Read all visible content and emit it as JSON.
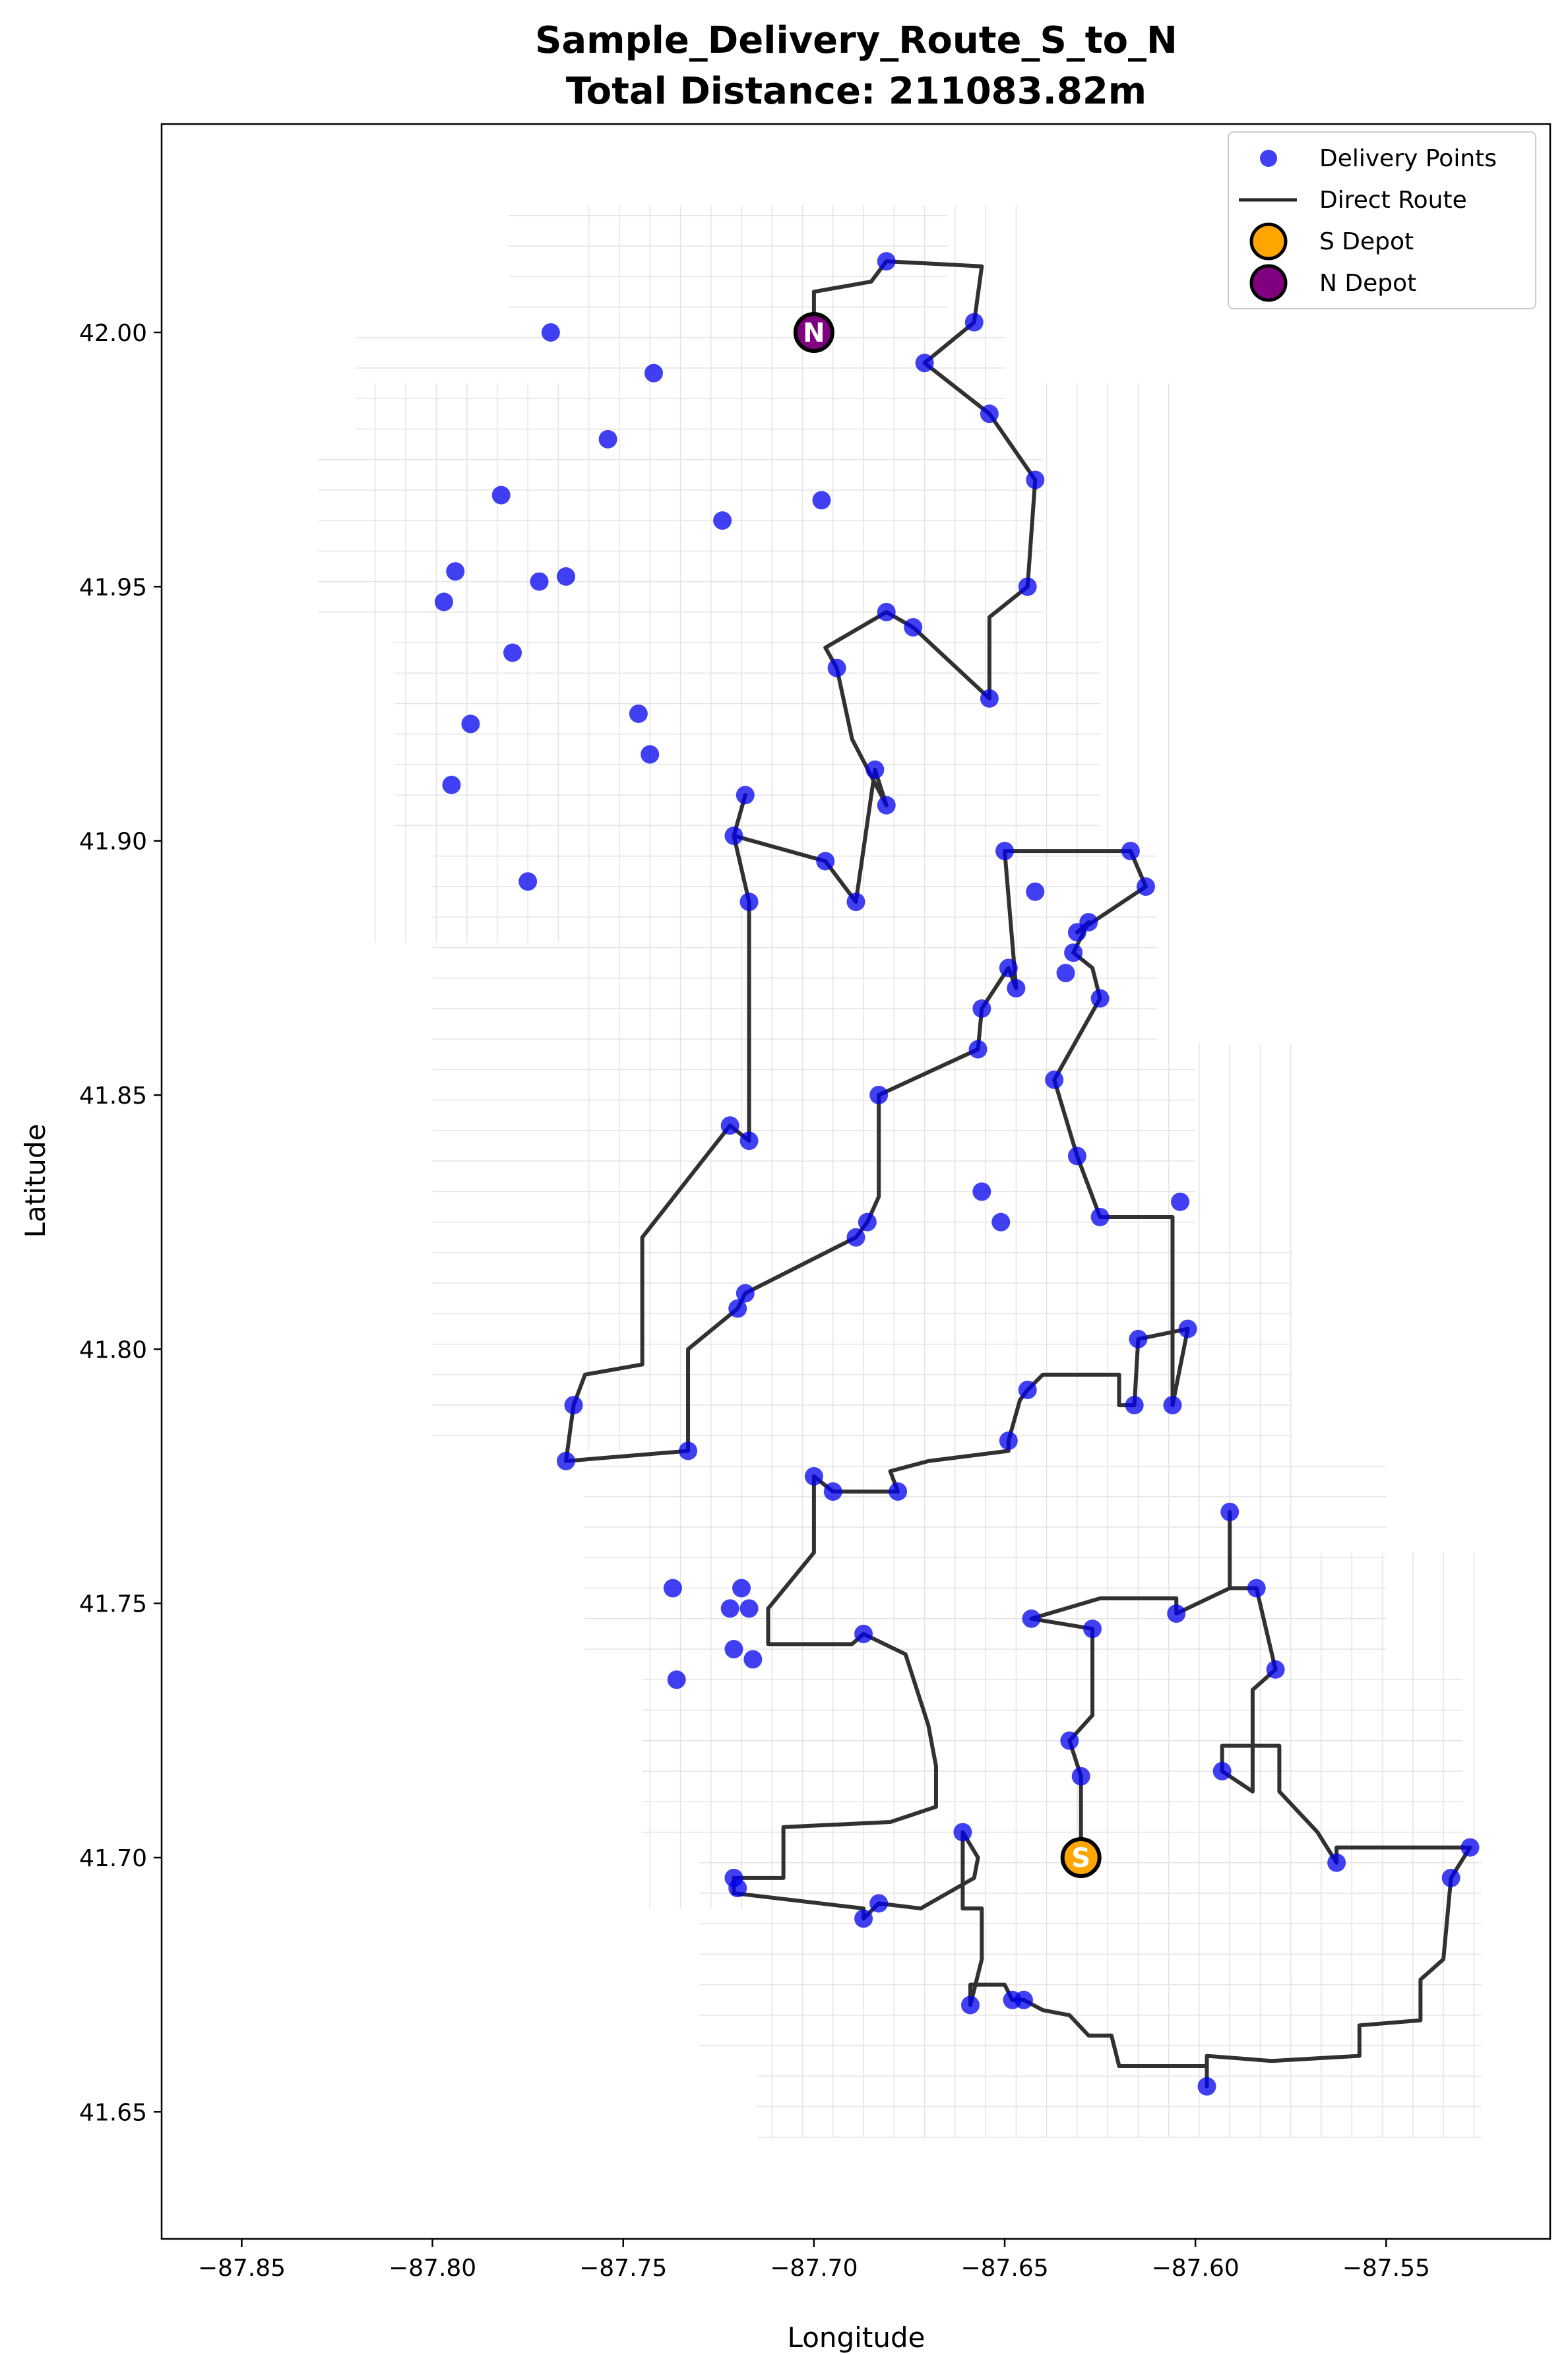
{
  "title": {
    "line1": "Sample_Delivery_Route_S_to_N",
    "line2": "Total Distance: 211083.82m"
  },
  "chart_data": {
    "type": "scatter",
    "xlabel": "Longitude",
    "ylabel": "Latitude",
    "xlim": [
      -87.871,
      -87.507
    ],
    "ylim": [
      41.625,
      42.041
    ],
    "x_ticks": [
      -87.85,
      -87.8,
      -87.75,
      -87.7,
      -87.65,
      -87.6,
      -87.55
    ],
    "y_ticks": [
      41.65,
      41.7,
      41.75,
      41.8,
      41.85,
      41.9,
      41.95,
      42.0
    ],
    "x_tick_labels": [
      "−87.85",
      "−87.80",
      "−87.75",
      "−87.70",
      "−87.65",
      "−87.60",
      "−87.55"
    ],
    "y_tick_labels": [
      "41.65",
      "41.70",
      "41.75",
      "41.80",
      "41.85",
      "41.90",
      "41.95",
      "42.00"
    ],
    "grid": false,
    "legend_position": "top-right",
    "colors": {
      "delivery_points": "#0000ee",
      "route": "#262626",
      "s_depot": "#ffa500",
      "n_depot": "#800080",
      "street_network": "#e4e4e4"
    },
    "legend": [
      {
        "label": "Delivery Points",
        "marker": "dot"
      },
      {
        "label": "Direct Route",
        "marker": "line"
      },
      {
        "label": "S Depot",
        "marker": "s-depot"
      },
      {
        "label": "N Depot",
        "marker": "n-depot"
      }
    ],
    "depots": {
      "s": {
        "label": "S",
        "lon": -87.63,
        "lat": 41.7
      },
      "n": {
        "label": "N",
        "lon": -87.7,
        "lat": 42.0
      }
    },
    "delivery_points": [
      [
        -87.681,
        42.014
      ],
      [
        -87.658,
        42.002
      ],
      [
        -87.671,
        41.994
      ],
      [
        -87.654,
        41.984
      ],
      [
        -87.642,
        41.971
      ],
      [
        -87.644,
        41.95
      ],
      [
        -87.681,
        41.945
      ],
      [
        -87.674,
        41.942
      ],
      [
        -87.654,
        41.928
      ],
      [
        -87.694,
        41.934
      ],
      [
        -87.684,
        41.914
      ],
      [
        -87.681,
        41.907
      ],
      [
        -87.718,
        41.909
      ],
      [
        -87.721,
        41.901
      ],
      [
        -87.697,
        41.896
      ],
      [
        -87.689,
        41.888
      ],
      [
        -87.717,
        41.888
      ],
      [
        -87.65,
        41.898
      ],
      [
        -87.617,
        41.898
      ],
      [
        -87.642,
        41.89
      ],
      [
        -87.613,
        41.891
      ],
      [
        -87.628,
        41.884
      ],
      [
        -87.631,
        41.882
      ],
      [
        -87.632,
        41.878
      ],
      [
        -87.634,
        41.874
      ],
      [
        -87.649,
        41.875
      ],
      [
        -87.647,
        41.871
      ],
      [
        -87.625,
        41.869
      ],
      [
        -87.656,
        41.867
      ],
      [
        -87.657,
        41.859
      ],
      [
        -87.683,
        41.85
      ],
      [
        -87.637,
        41.853
      ],
      [
        -87.722,
        41.844
      ],
      [
        -87.717,
        41.841
      ],
      [
        -87.631,
        41.838
      ],
      [
        -87.604,
        41.829
      ],
      [
        -87.625,
        41.826
      ],
      [
        -87.686,
        41.825
      ],
      [
        -87.689,
        41.822
      ],
      [
        -87.656,
        41.831
      ],
      [
        -87.651,
        41.825
      ],
      [
        -87.718,
        41.811
      ],
      [
        -87.72,
        41.808
      ],
      [
        -87.615,
        41.802
      ],
      [
        -87.602,
        41.804
      ],
      [
        -87.763,
        41.789
      ],
      [
        -87.765,
        41.778
      ],
      [
        -87.733,
        41.78
      ],
      [
        -87.644,
        41.792
      ],
      [
        -87.616,
        41.789
      ],
      [
        -87.606,
        41.789
      ],
      [
        -87.649,
        41.782
      ],
      [
        -87.7,
        41.775
      ],
      [
        -87.695,
        41.772
      ],
      [
        -87.678,
        41.772
      ],
      [
        -87.737,
        41.753
      ],
      [
        -87.719,
        41.753
      ],
      [
        -87.722,
        41.749
      ],
      [
        -87.717,
        41.749
      ],
      [
        -87.721,
        41.741
      ],
      [
        -87.716,
        41.739
      ],
      [
        -87.736,
        41.735
      ],
      [
        -87.687,
        41.744
      ],
      [
        -87.643,
        41.747
      ],
      [
        -87.627,
        41.745
      ],
      [
        -87.605,
        41.748
      ],
      [
        -87.591,
        41.768
      ],
      [
        -87.584,
        41.753
      ],
      [
        -87.579,
        41.737
      ],
      [
        -87.633,
        41.723
      ],
      [
        -87.63,
        41.716
      ],
      [
        -87.593,
        41.717
      ],
      [
        -87.661,
        41.705
      ],
      [
        -87.721,
        41.696
      ],
      [
        -87.72,
        41.694
      ],
      [
        -87.683,
        41.691
      ],
      [
        -87.687,
        41.688
      ],
      [
        -87.563,
        41.699
      ],
      [
        -87.528,
        41.702
      ],
      [
        -87.533,
        41.696
      ],
      [
        -87.659,
        41.671
      ],
      [
        -87.648,
        41.672
      ],
      [
        -87.645,
        41.672
      ],
      [
        -87.597,
        41.655
      ],
      [
        -87.769,
        42.0
      ],
      [
        -87.742,
        41.992
      ],
      [
        -87.754,
        41.979
      ],
      [
        -87.782,
        41.968
      ],
      [
        -87.698,
        41.967
      ],
      [
        -87.724,
        41.963
      ],
      [
        -87.794,
        41.953
      ],
      [
        -87.772,
        41.951
      ],
      [
        -87.765,
        41.952
      ],
      [
        -87.797,
        41.947
      ],
      [
        -87.779,
        41.937
      ],
      [
        -87.746,
        41.925
      ],
      [
        -87.743,
        41.917
      ],
      [
        -87.79,
        41.923
      ],
      [
        -87.795,
        41.911
      ],
      [
        -87.775,
        41.892
      ]
    ],
    "route": [
      [
        -87.63,
        41.7
      ],
      [
        -87.63,
        41.716
      ],
      [
        -87.633,
        41.723
      ],
      [
        -87.627,
        41.728
      ],
      [
        -87.627,
        41.745
      ],
      [
        -87.643,
        41.747
      ],
      [
        -87.625,
        41.751
      ],
      [
        -87.605,
        41.751
      ],
      [
        -87.605,
        41.748
      ],
      [
        -87.591,
        41.753
      ],
      [
        -87.584,
        41.753
      ],
      [
        -87.591,
        41.753
      ],
      [
        -87.591,
        41.768
      ],
      [
        -87.591,
        41.753
      ],
      [
        -87.584,
        41.753
      ],
      [
        -87.579,
        41.737
      ],
      [
        -87.585,
        41.733
      ],
      [
        -87.585,
        41.713
      ],
      [
        -87.593,
        41.717
      ],
      [
        -87.593,
        41.722
      ],
      [
        -87.578,
        41.722
      ],
      [
        -87.578,
        41.713
      ],
      [
        -87.568,
        41.705
      ],
      [
        -87.563,
        41.699
      ],
      [
        -87.563,
        41.702
      ],
      [
        -87.528,
        41.702
      ],
      [
        -87.533,
        41.696
      ],
      [
        -87.535,
        41.68
      ],
      [
        -87.541,
        41.676
      ],
      [
        -87.541,
        41.668
      ],
      [
        -87.557,
        41.667
      ],
      [
        -87.557,
        41.661
      ],
      [
        -87.58,
        41.66
      ],
      [
        -87.597,
        41.661
      ],
      [
        -87.597,
        41.655
      ],
      [
        -87.597,
        41.659
      ],
      [
        -87.606,
        41.659
      ],
      [
        -87.62,
        41.659
      ],
      [
        -87.622,
        41.665
      ],
      [
        -87.628,
        41.665
      ],
      [
        -87.633,
        41.669
      ],
      [
        -87.64,
        41.67
      ],
      [
        -87.645,
        41.672
      ],
      [
        -87.648,
        41.672
      ],
      [
        -87.65,
        41.675
      ],
      [
        -87.659,
        41.675
      ],
      [
        -87.659,
        41.671
      ],
      [
        -87.656,
        41.68
      ],
      [
        -87.656,
        41.69
      ],
      [
        -87.661,
        41.69
      ],
      [
        -87.661,
        41.705
      ],
      [
        -87.657,
        41.7
      ],
      [
        -87.658,
        41.696
      ],
      [
        -87.672,
        41.69
      ],
      [
        -87.683,
        41.691
      ],
      [
        -87.687,
        41.688
      ],
      [
        -87.687,
        41.69
      ],
      [
        -87.721,
        41.693
      ],
      [
        -87.721,
        41.696
      ],
      [
        -87.708,
        41.696
      ],
      [
        -87.708,
        41.706
      ],
      [
        -87.68,
        41.707
      ],
      [
        -87.668,
        41.71
      ],
      [
        -87.668,
        41.718
      ],
      [
        -87.67,
        41.726
      ],
      [
        -87.676,
        41.74
      ],
      [
        -87.687,
        41.744
      ],
      [
        -87.69,
        41.742
      ],
      [
        -87.712,
        41.742
      ],
      [
        -87.712,
        41.749
      ],
      [
        -87.7,
        41.76
      ],
      [
        -87.7,
        41.775
      ],
      [
        -87.695,
        41.772
      ],
      [
        -87.678,
        41.772
      ],
      [
        -87.68,
        41.776
      ],
      [
        -87.67,
        41.778
      ],
      [
        -87.649,
        41.78
      ],
      [
        -87.649,
        41.782
      ],
      [
        -87.646,
        41.79
      ],
      [
        -87.644,
        41.792
      ],
      [
        -87.64,
        41.795
      ],
      [
        -87.62,
        41.795
      ],
      [
        -87.62,
        41.789
      ],
      [
        -87.616,
        41.789
      ],
      [
        -87.615,
        41.802
      ],
      [
        -87.602,
        41.804
      ],
      [
        -87.606,
        41.789
      ],
      [
        -87.606,
        41.826
      ],
      [
        -87.621,
        41.826
      ],
      [
        -87.625,
        41.826
      ],
      [
        -87.631,
        41.838
      ],
      [
        -87.637,
        41.853
      ],
      [
        -87.625,
        41.869
      ],
      [
        -87.627,
        41.875
      ],
      [
        -87.632,
        41.878
      ],
      [
        -87.628,
        41.884
      ],
      [
        -87.631,
        41.882
      ],
      [
        -87.613,
        41.891
      ],
      [
        -87.617,
        41.898
      ],
      [
        -87.65,
        41.898
      ],
      [
        -87.647,
        41.871
      ],
      [
        -87.649,
        41.875
      ],
      [
        -87.656,
        41.867
      ],
      [
        -87.657,
        41.859
      ],
      [
        -87.683,
        41.85
      ],
      [
        -87.683,
        41.83
      ],
      [
        -87.686,
        41.825
      ],
      [
        -87.689,
        41.822
      ],
      [
        -87.718,
        41.811
      ],
      [
        -87.72,
        41.808
      ],
      [
        -87.733,
        41.8
      ],
      [
        -87.733,
        41.78
      ],
      [
        -87.765,
        41.778
      ],
      [
        -87.763,
        41.789
      ],
      [
        -87.76,
        41.795
      ],
      [
        -87.745,
        41.797
      ],
      [
        -87.745,
        41.822
      ],
      [
        -87.722,
        41.844
      ],
      [
        -87.717,
        41.841
      ],
      [
        -87.717,
        41.888
      ],
      [
        -87.721,
        41.901
      ],
      [
        -87.718,
        41.909
      ],
      [
        -87.721,
        41.901
      ],
      [
        -87.697,
        41.896
      ],
      [
        -87.689,
        41.888
      ],
      [
        -87.684,
        41.914
      ],
      [
        -87.681,
        41.907
      ],
      [
        -87.69,
        41.92
      ],
      [
        -87.694,
        41.934
      ],
      [
        -87.697,
        41.938
      ],
      [
        -87.681,
        41.945
      ],
      [
        -87.674,
        41.942
      ],
      [
        -87.654,
        41.928
      ],
      [
        -87.654,
        41.944
      ],
      [
        -87.644,
        41.95
      ],
      [
        -87.642,
        41.971
      ],
      [
        -87.654,
        41.984
      ],
      [
        -87.671,
        41.994
      ],
      [
        -87.658,
        42.002
      ],
      [
        -87.656,
        42.013
      ],
      [
        -87.681,
        42.014
      ],
      [
        -87.685,
        42.01
      ],
      [
        -87.7,
        42.008
      ],
      [
        -87.7,
        42.0
      ]
    ]
  }
}
